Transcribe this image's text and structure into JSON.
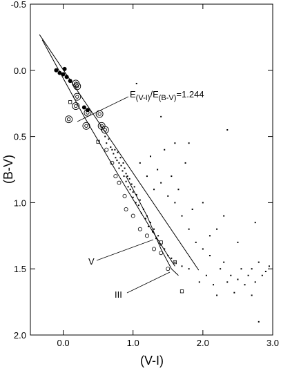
{
  "chart_data": {
    "type": "scatter",
    "xlabel": "(V-I)",
    "ylabel": "(B-V)",
    "xlim": [
      -0.47,
      3.0
    ],
    "ylim": [
      -0.5,
      2.0
    ],
    "y_inverted": true,
    "xticks": [
      {
        "value": 0,
        "label": "0.0"
      },
      {
        "value": 1,
        "label": "1.0"
      },
      {
        "value": 2,
        "label": "2.0"
      },
      {
        "value": 3,
        "label": "3.0"
      }
    ],
    "yticks": [
      {
        "value": -0.5,
        "label": "-0.5"
      },
      {
        "value": 0,
        "label": "0.0"
      },
      {
        "value": 0.5,
        "label": "0.5"
      },
      {
        "value": 1,
        "label": "1.0"
      },
      {
        "value": 1.5,
        "label": "1.5"
      },
      {
        "value": 2,
        "label": "2.0"
      }
    ],
    "annotations": [
      {
        "parts": [
          "E",
          "(V-I)",
          "/E",
          "(B-V)",
          "=1.244"
        ]
      },
      {
        "text": "V"
      },
      {
        "text": "III"
      }
    ],
    "series": [
      {
        "type": "line",
        "color": "#000",
        "x": [
          -0.34,
          1.94
        ],
        "values": [
          -0.27,
          1.51
        ]
      },
      {
        "type": "line",
        "color": "#000",
        "x": [
          -0.3,
          0.3,
          0.8,
          1.2,
          1.5,
          1.6
        ],
        "values": [
          -0.23,
          0.35,
          0.8,
          1.15,
          1.4,
          1.48
        ]
      },
      {
        "type": "line",
        "color": "#000",
        "x": [
          0.9,
          1.2,
          1.4,
          1.55,
          1.65
        ],
        "values": [
          0.8,
          1.1,
          1.35,
          1.5,
          1.55
        ]
      },
      {
        "marker": "dot",
        "color": "#000",
        "x": [
          0.55,
          0.6,
          0.62,
          0.65,
          0.68,
          0.7,
          0.72,
          0.74,
          0.75,
          0.77,
          0.78,
          0.8,
          0.8,
          0.82,
          0.83,
          0.85,
          0.86,
          0.87,
          0.88,
          0.9,
          0.9,
          0.92,
          0.93,
          0.95,
          0.96,
          0.98,
          1.0,
          1.0,
          1.02,
          1.04,
          1.05,
          1.08,
          1.1,
          1.12,
          1.15,
          1.18,
          1.2,
          1.22,
          1.25,
          1.28,
          1.3,
          1.33,
          1.36,
          1.4,
          1.45,
          1.5,
          1.55,
          1.6,
          1.7,
          1.8,
          1.1,
          1.2,
          1.3,
          1.25,
          1.4,
          1.5,
          1.35,
          1.6,
          1.45,
          1.7,
          1.55,
          1.8,
          1.65,
          1.9,
          2.0,
          1.75,
          2.1,
          1.6,
          2.0,
          1.85,
          2.2,
          2.3,
          1.95,
          2.05,
          2.15,
          2.25,
          2.35,
          2.4,
          2.5,
          2.55,
          2.6,
          2.65,
          2.7,
          2.75,
          2.8,
          2.85,
          2.9,
          2.95,
          2.2,
          2.45,
          2.7,
          2.1,
          2.3,
          2.5,
          2.75,
          2.8,
          2.35,
          1.05,
          1.4,
          1.8
        ],
        "values": [
          0.45,
          0.5,
          0.55,
          0.52,
          0.58,
          0.6,
          0.63,
          0.6,
          0.66,
          0.68,
          0.62,
          0.7,
          0.74,
          0.66,
          0.72,
          0.76,
          0.7,
          0.8,
          0.74,
          0.78,
          0.84,
          0.8,
          0.88,
          0.82,
          0.9,
          0.86,
          0.92,
          0.96,
          0.88,
          1.0,
          0.94,
          1.02,
          0.98,
          1.08,
          1.05,
          1.12,
          1.1,
          1.18,
          1.15,
          1.22,
          1.2,
          1.27,
          1.25,
          1.32,
          1.35,
          1.4,
          1.42,
          1.45,
          1.48,
          1.5,
          0.7,
          0.8,
          0.9,
          0.65,
          0.85,
          0.95,
          0.75,
          1.0,
          0.6,
          1.1,
          0.8,
          1.2,
          0.9,
          1.3,
          1.35,
          0.7,
          1.4,
          0.55,
          1.0,
          1.05,
          1.2,
          1.45,
          1.6,
          1.55,
          1.62,
          1.5,
          1.6,
          1.55,
          1.58,
          1.5,
          1.62,
          1.55,
          1.5,
          1.6,
          1.45,
          1.55,
          1.52,
          1.48,
          1.7,
          1.68,
          1.7,
          1.25,
          1.1,
          1.3,
          1.15,
          1.9,
          0.45,
          0.1,
          0.35,
          0.55
        ]
      },
      {
        "marker": "filled-circle",
        "color": "#000",
        "x": [
          -0.1,
          -0.05,
          0.0,
          0.02,
          0.05,
          0.1,
          0.3,
          0.35
        ],
        "values": [
          0.0,
          0.02,
          0.03,
          -0.01,
          0.05,
          0.08,
          0.28,
          0.3
        ]
      },
      {
        "marker": "square",
        "color": "#000",
        "x": [
          0.1,
          0.5,
          1.4,
          1.6,
          1.7
        ],
        "values": [
          0.24,
          0.54,
          1.3,
          1.45,
          1.67
        ]
      },
      {
        "marker": "ringed-circle",
        "color": "#000",
        "x": [
          0.18,
          0.2,
          0.18,
          0.35,
          0.52,
          0.08,
          0.33,
          0.55,
          0.6,
          0.2
        ],
        "values": [
          0.1,
          0.12,
          0.27,
          0.32,
          0.33,
          0.37,
          0.42,
          0.42,
          0.45,
          0.2
        ]
      },
      {
        "marker": "open-circle",
        "color": "#000",
        "x": [
          0.75,
          0.8,
          0.88,
          0.9,
          1.0,
          1.1,
          1.2,
          1.3,
          0.62,
          0.7,
          1.5,
          1.4
        ],
        "values": [
          0.8,
          0.85,
          0.95,
          1.05,
          1.1,
          1.2,
          1.25,
          1.35,
          0.6,
          0.7,
          1.5,
          1.38
        ]
      }
    ]
  }
}
